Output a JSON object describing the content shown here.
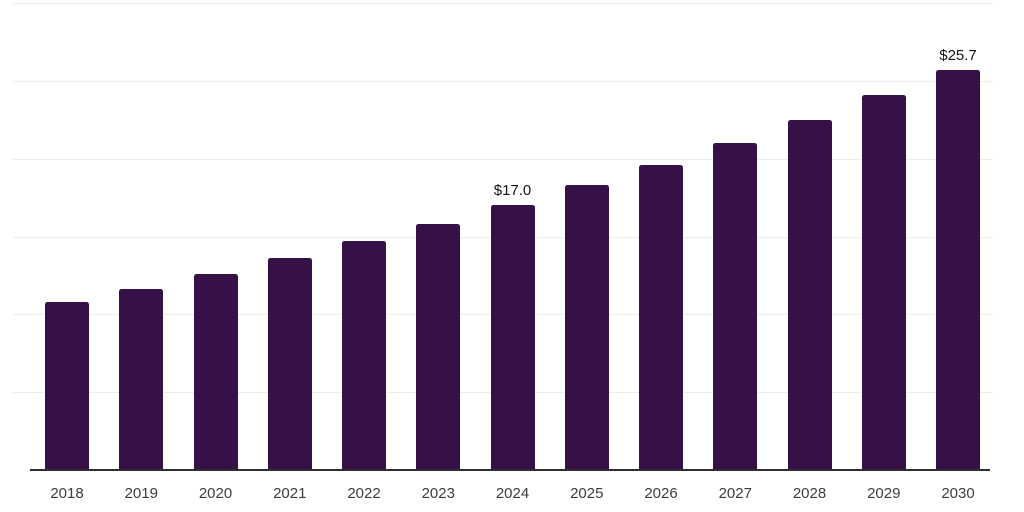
{
  "chart_data": {
    "type": "bar",
    "title": "",
    "xlabel": "",
    "ylabel": "",
    "categories": [
      "2018",
      "2019",
      "2020",
      "2021",
      "2022",
      "2023",
      "2024",
      "2025",
      "2026",
      "2027",
      "2028",
      "2029",
      "2030"
    ],
    "values": [
      10.8,
      11.6,
      12.6,
      13.6,
      14.7,
      15.8,
      17.0,
      18.3,
      19.6,
      21.0,
      22.5,
      24.1,
      25.7
    ],
    "value_labels": [
      "",
      "",
      "",
      "",
      "",
      "",
      "$17.0",
      "",
      "",
      "",
      "",
      "",
      "$25.7"
    ],
    "ylim": [
      0,
      30
    ],
    "gridline_step": 5,
    "grid": true,
    "legend_position": "none",
    "colors": {
      "bar": "#361148",
      "gridline": "#ececec",
      "axis": "#2f2f2f",
      "tick_label": "#3d3d3d",
      "value_label": "#141414",
      "background": "#ffffff"
    }
  }
}
